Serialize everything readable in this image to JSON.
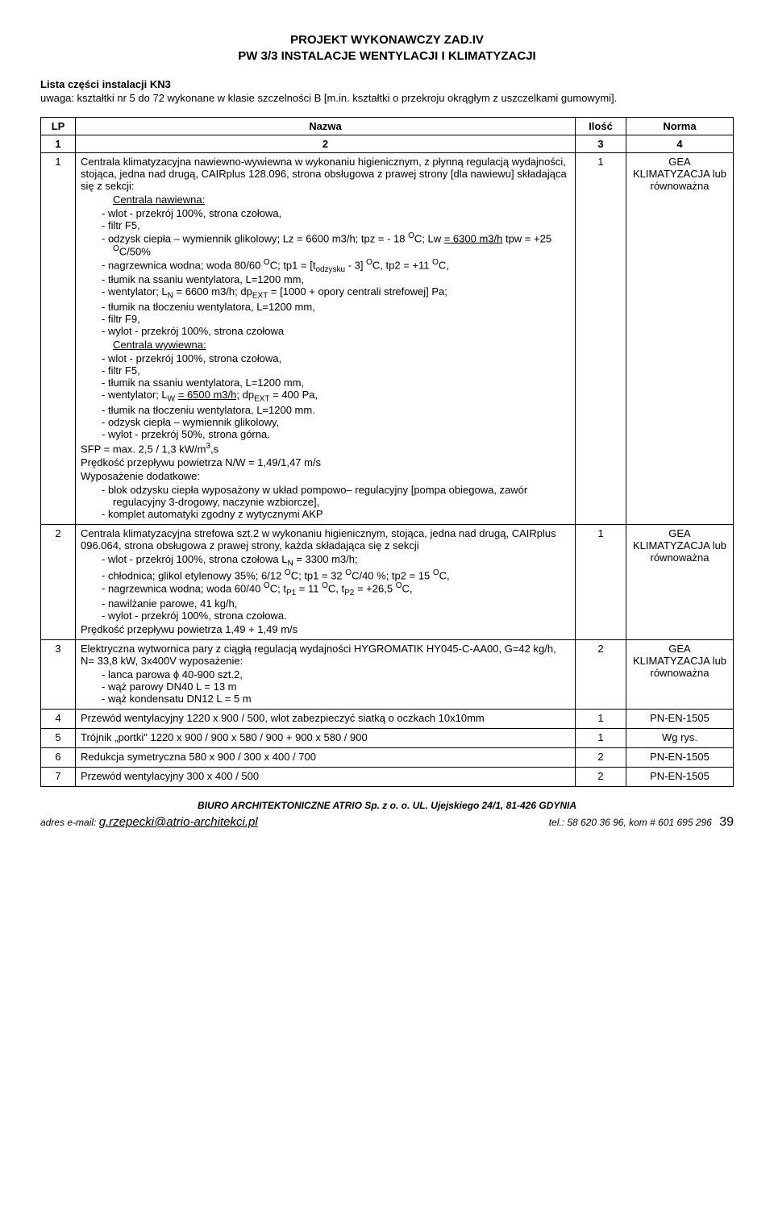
{
  "header": {
    "line1": "PROJEKT WYKONAWCZY ZAD.IV",
    "line2": "PW 3/3 INSTALACJE  WENTYLACJI I KLIMATYZACJI"
  },
  "subheader": "Lista części instalacji KN3",
  "note": "uwaga: kształtki nr 5 do 72 wykonane w klasie szczelności B [m.in. kształtki o przekroju okrągłym z uszczelkami gumowymi].",
  "table": {
    "headers": {
      "lp": "LP",
      "nazwa": "Nazwa",
      "ilosc": "Ilość",
      "norma": "Norma"
    },
    "subheaders": {
      "c1": "1",
      "c2": "2",
      "c3": "3",
      "c4": "4"
    },
    "rows": [
      {
        "lp": "1",
        "ilosc": "1",
        "norma": "GEA KLIMATYZACJA lub równoważna",
        "nazwa_html": "<p>Centrala klimatyzacyjna nawiewno-wywiewna w wykonaniu higienicznym, z płynną regulacją wydajności, stojąca, jedna nad drugą, CAIRplus 128.096, strona obsługowa z prawej strony [dla nawiewu] składająca się z sekcji:</p><p style='padding-left:40px'><span class='underline'>Centrala nawiewna:</span></p><ul><li>wlot - przekrój 100%, strona czołowa,</li><li>filtr F5,</li><li>odzysk ciepła – wymiennik glikolowy; Lz  = 6600 m3/h; tpz = - 18 <sup>O</sup>C; Lw  <span class='underline'>= 6300 m3/h</span> tpw = +25 <sup>O</sup>C/50%</li><li>nagrzewnica wodna; woda 80/60 <sup>O</sup>C;  tp1 = [t<sub>odzysku</sub> - 3] <sup>O</sup>C, tp2 = +11 <sup>O</sup>C,</li><li>tłumik na ssaniu wentylatora, L=1200 mm,</li><li>wentylator; L<sub>N</sub> = 6600 m3/h; dp<sub>EXT</sub> = [1000 + opory centrali strefowej] Pa;</li><li>tłumik na tłoczeniu wentylatora, L=1200 mm,</li><li>filtr F9,</li><li>wylot - przekrój 100%, strona czołowa</li></ul><p style='padding-left:40px'><span class='underline'>Centrala wywiewna:</span></p><ul><li>wlot - przekrój 100%, strona czołowa,</li><li>filtr F5,</li><li>tłumik na ssaniu wentylatora, L=1200 mm,</li><li>wentylator; L<sub>W</sub> <span class='underline'>= 6500 m3/h;</span> dp<sub>EXT</sub> = 400 Pa,</li><li>tłumik na tłoczeniu wentylatora, L=1200 mm.</li><li>odzysk ciepła – wymiennik glikolowy,</li><li>wylot - przekrój 50%, strona górna.</li></ul><p>SFP = max. 2,5 / 1,3 kW/m<sup>3</sup>,s</p><p>Prędkość przepływu powietrza N/W = 1,49/1,47 m/s</p><p>Wyposażenie dodatkowe:</p><ul><li>blok odzysku ciepła wyposażony w układ pompowo– regulacyjny [pompa obiegowa, zawór regulacyjny 3-drogowy, naczynie wzbiorcze],</li><li>komplet automatyki zgodny z wytycznymi AKP</li></ul>"
      },
      {
        "lp": "2",
        "ilosc": "1",
        "norma": "GEA KLIMATYZACJA lub równoważna",
        "nazwa_html": "<p>Centrala klimatyzacyjna strefowa szt.2 w wykonaniu higienicznym, stojąca, jedna nad drugą, CAIRplus 096.064, strona obsługowa z prawej strony, każda składająca się z sekcji</p><ul><li>wlot - przekrój 100%, strona czołowa L<sub>N</sub> = 3300 m3/h;</li><li>chłodnica; glikol etylenowy 35%; 6/12 <sup>O</sup>C;  tp1 = 32 <sup>O</sup>C/40 %; tp2 = 15 <sup>O</sup>C,</li><li>nagrzewnica wodna;  woda 60/40 <sup>O</sup>C;  t<sub>P1</sub> = 11 <sup>O</sup>C, t<sub>P2</sub> = +26,5 <sup>O</sup>C,</li><li>nawilżanie parowe, 41 kg/h,</li><li>wylot - przekrój 100%, strona czołowa.</li></ul><p>Prędkość przepływu powietrza 1,49 + 1,49 m/s</p>"
      },
      {
        "lp": "3",
        "ilosc": "2",
        "norma": "GEA KLIMATYZACJA lub równoważna",
        "nazwa_html": "<p>Elektryczna wytwornica pary z ciągłą regulacją wydajności HYGROMATIK HY045-C-AA00,  G=42 kg/h, N= 33,8 kW, 3x400V wyposażenie:</p><ul><li>lanca parowa ϕ 40-900 szt.2,</li><li>wąż parowy DN40 L = 13 m</li><li>wąż kondensatu DN12  L = 5 m</li></ul>"
      },
      {
        "lp": "4",
        "ilosc": "1",
        "norma": "PN-EN-1505",
        "nazwa_html": "<p>Przewód wentylacyjny 1220 x 900 / 500, wlot zabezpieczyć siatką o oczkach 10x10mm</p>"
      },
      {
        "lp": "5",
        "ilosc": "1",
        "norma": "Wg rys.",
        "nazwa_html": "<p>Trójnik „portki\" 1220 x 900 / 900 x 580 / 900 + 900 x 580 / 900</p>"
      },
      {
        "lp": "6",
        "ilosc": "2",
        "norma": "PN-EN-1505",
        "nazwa_html": "<p>Redukcja symetryczna 580 x 900 / 300 x 400 / 700</p>"
      },
      {
        "lp": "7",
        "ilosc": "2",
        "norma": "PN-EN-1505",
        "nazwa_html": "<p>Przewód wentylacyjny 300 x 400 / 500</p>"
      }
    ]
  },
  "footer": {
    "line1": "BIURO  ARCHITEKTONICZNE  ATRIO Sp.  z o. o.   UL. Ujejskiego 24/1,  81-426 GDYNIA",
    "email_label": "adres e-mail: ",
    "email": "g.rzepecki@atrio-architekci.pl",
    "tel": "tel.: 58 620 36 96,  kom # 601 695 296",
    "page": "39"
  }
}
